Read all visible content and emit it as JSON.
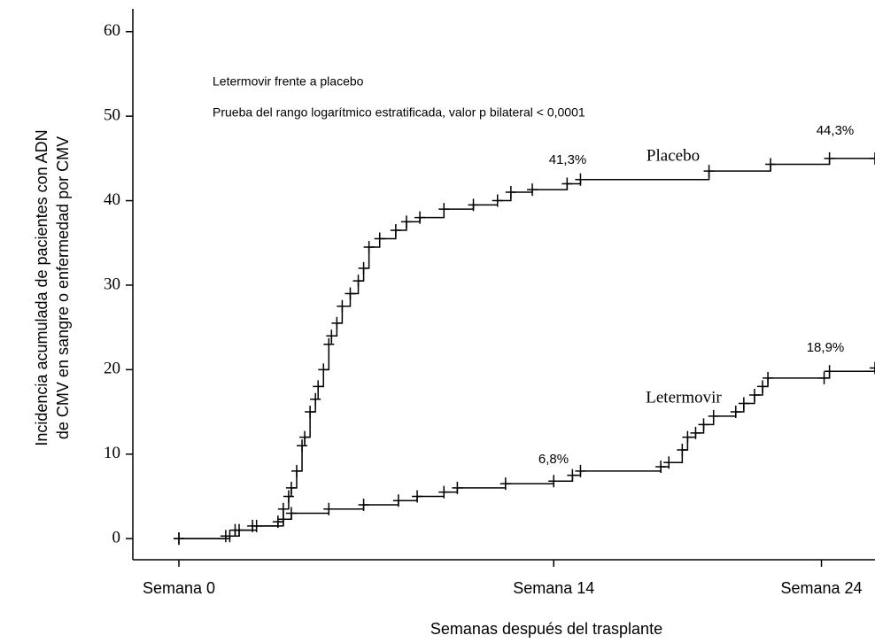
{
  "chart_data": {
    "type": "step",
    "title_lines": [
      "Letermovir frente a placebo",
      "Prueba del rango logarítmico estratificada, valor p bilateral < 0,0001"
    ],
    "xlabel": "Semanas después del trasplante",
    "ylabel_lines": [
      "Incidencia acumulada de pacientes con ADN",
      "de CMV en sangre o enfermedad por CMV"
    ],
    "xlim": [
      -1.72,
      26.0
    ],
    "ylim": [
      -2.5,
      62.7
    ],
    "xticks": [
      {
        "value": 0,
        "label": "Semana 0"
      },
      {
        "value": 14,
        "label": "Semana 14"
      },
      {
        "value": 24,
        "label": "Semana 24"
      }
    ],
    "yticks": [
      0,
      10,
      20,
      30,
      40,
      50,
      60
    ],
    "annotations": [
      "41,3%",
      "44,3%",
      "6,8%",
      "18,9%"
    ],
    "series": [
      {
        "name": "Placebo",
        "color": "#000000",
        "x": [
          0,
          1.9,
          2.25,
          2.75,
          3.7,
          3.9,
          4.1,
          4.2,
          4.4,
          4.6,
          4.7,
          4.9,
          5.1,
          5.2,
          5.4,
          5.6,
          5.7,
          5.9,
          6.1,
          6.4,
          6.7,
          6.9,
          7.1,
          7.5,
          8.1,
          8.5,
          9.0,
          9.9,
          11.0,
          11.9,
          12.4,
          13.2,
          14.5,
          15.0,
          19.8,
          22.1,
          24.3,
          26.0
        ],
        "values": [
          0,
          0.3,
          1,
          1.5,
          2,
          3.5,
          5,
          6,
          8,
          11,
          12,
          15,
          16.5,
          18,
          20,
          23,
          24,
          25.5,
          27.5,
          29,
          30.5,
          32,
          34.5,
          35.5,
          36.5,
          37.5,
          38,
          39,
          39.5,
          40,
          41,
          41.3,
          42,
          42.5,
          43.5,
          44.3,
          45,
          45
        ]
      },
      {
        "name": "Letermovir",
        "color": "#000000",
        "x": [
          0,
          1.75,
          2.1,
          2.9,
          3.9,
          4.2,
          5.6,
          6.9,
          8.2,
          8.9,
          9.9,
          10.4,
          12.2,
          14.0,
          14.7,
          15.0,
          18.0,
          18.3,
          18.8,
          19.0,
          19.3,
          19.6,
          19.97,
          20.8,
          21.1,
          21.5,
          21.8,
          22.0,
          24.1,
          24.3,
          26.0
        ],
        "values": [
          0,
          0.3,
          1,
          1.5,
          2.3,
          3,
          3.5,
          4,
          4.5,
          5,
          5.5,
          6,
          6.5,
          6.8,
          7.5,
          8,
          8.5,
          9,
          10.5,
          12,
          12.5,
          13.5,
          14.5,
          15,
          16,
          17,
          18,
          19,
          19,
          19.8,
          20.2
        ]
      }
    ]
  }
}
